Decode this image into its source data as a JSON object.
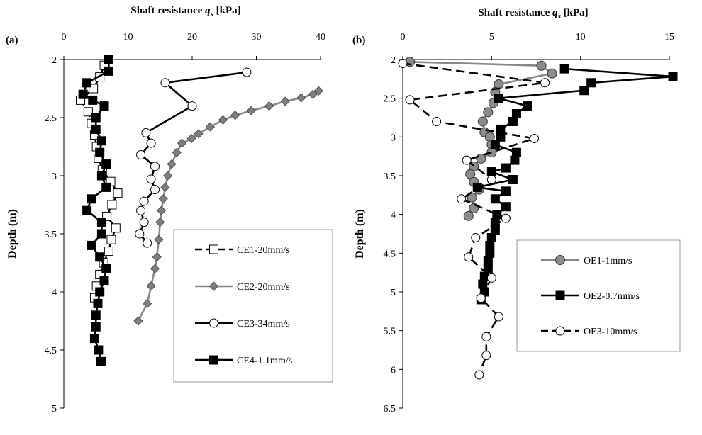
{
  "chart_data": [
    {
      "panel_label": "(a)",
      "type": "line",
      "title_prefix": "Shaft resistance ",
      "title_sym": "q",
      "title_sub": "s",
      "title_suffix": " [kPa]",
      "ylabel": "Depth (m)",
      "x_axis_position": "top",
      "y_axis_inverted": true,
      "xlim": [
        0,
        40
      ],
      "ylim": [
        2,
        5
      ],
      "xticks": [
        "0",
        "10",
        "20",
        "30",
        "40"
      ],
      "yticks": [
        "2",
        "2.5",
        "3",
        "3.5",
        "4",
        "4.5",
        "5"
      ],
      "legend_position": "bottom-right",
      "legend": [
        "CE1-20mm/s",
        "CE2-20mm/s",
        "CE3-34mm/s",
        "CE4-1.1mm/s"
      ],
      "series": [
        {
          "name": "CE1-20mm/s",
          "marker": "square-open",
          "line": "dashed-black",
          "points": [
            [
              6.3,
              2.05
            ],
            [
              5.6,
              2.15
            ],
            [
              4.6,
              2.25
            ],
            [
              2.6,
              2.35
            ],
            [
              3.8,
              2.45
            ],
            [
              4.3,
              2.55
            ],
            [
              4.8,
              2.65
            ],
            [
              5.1,
              2.75
            ],
            [
              5.4,
              2.85
            ],
            [
              6.0,
              2.95
            ],
            [
              7.3,
              3.05
            ],
            [
              8.4,
              3.15
            ],
            [
              7.5,
              3.25
            ],
            [
              6.7,
              3.35
            ],
            [
              8.1,
              3.45
            ],
            [
              7.4,
              3.55
            ],
            [
              7.0,
              3.65
            ],
            [
              6.2,
              3.75
            ],
            [
              5.6,
              3.85
            ],
            [
              5.1,
              3.95
            ],
            [
              4.8,
              4.05
            ]
          ]
        },
        {
          "name": "CE2-20mm/s",
          "marker": "diamond-gray",
          "line": "solid-gray",
          "points": [
            [
              39.7,
              2.27
            ],
            [
              38.8,
              2.3
            ],
            [
              37.0,
              2.33
            ],
            [
              34.5,
              2.36
            ],
            [
              32.0,
              2.4
            ],
            [
              29.2,
              2.44
            ],
            [
              26.7,
              2.48
            ],
            [
              24.8,
              2.52
            ],
            [
              22.8,
              2.58
            ],
            [
              21.0,
              2.64
            ],
            [
              19.9,
              2.68
            ],
            [
              18.4,
              2.72
            ],
            [
              17.6,
              2.8
            ],
            [
              16.8,
              2.9
            ],
            [
              16.2,
              3.0
            ],
            [
              15.8,
              3.1
            ],
            [
              15.5,
              3.2
            ],
            [
              15.2,
              3.3
            ],
            [
              15.0,
              3.4
            ],
            [
              14.8,
              3.55
            ],
            [
              14.5,
              3.7
            ],
            [
              14.2,
              3.8
            ],
            [
              13.6,
              3.95
            ],
            [
              13.0,
              4.1
            ],
            [
              11.6,
              4.25
            ]
          ]
        },
        {
          "name": "CE3-34mm/s",
          "marker": "circle-open",
          "line": "solid-black",
          "points": [
            [
              28.5,
              2.11
            ],
            [
              15.8,
              2.2
            ],
            [
              20.0,
              2.4
            ],
            [
              12.8,
              2.63
            ],
            [
              13.6,
              2.72
            ],
            [
              12.0,
              2.82
            ],
            [
              14.2,
              2.92
            ],
            [
              13.6,
              3.03
            ],
            [
              14.2,
              3.12
            ],
            [
              12.5,
              3.22
            ],
            [
              12.0,
              3.3
            ],
            [
              12.5,
              3.4
            ],
            [
              11.8,
              3.5
            ],
            [
              13.0,
              3.58
            ]
          ]
        },
        {
          "name": "CE4-1.1mm/s",
          "marker": "square-filled",
          "line": "solid-black",
          "points": [
            [
              7.0,
              2.0
            ],
            [
              7.0,
              2.1
            ],
            [
              3.6,
              2.2
            ],
            [
              3.0,
              2.3
            ],
            [
              4.5,
              2.35
            ],
            [
              6.3,
              2.4
            ],
            [
              5.0,
              2.5
            ],
            [
              5.0,
              2.6
            ],
            [
              5.9,
              2.7
            ],
            [
              5.6,
              2.8
            ],
            [
              6.6,
              2.9
            ],
            [
              5.9,
              3.0
            ],
            [
              6.6,
              3.1
            ],
            [
              4.3,
              3.2
            ],
            [
              3.6,
              3.3
            ],
            [
              5.9,
              3.4
            ],
            [
              5.9,
              3.5
            ],
            [
              4.3,
              3.6
            ],
            [
              5.6,
              3.7
            ],
            [
              6.6,
              3.8
            ],
            [
              6.3,
              3.9
            ],
            [
              5.6,
              4.0
            ],
            [
              5.3,
              4.1
            ],
            [
              5.0,
              4.2
            ],
            [
              5.0,
              4.3
            ],
            [
              4.8,
              4.4
            ],
            [
              5.4,
              4.5
            ],
            [
              5.8,
              4.6
            ]
          ]
        }
      ]
    },
    {
      "panel_label": "(b)",
      "type": "line",
      "title_prefix": "Shaft resistance ",
      "title_sym": "q",
      "title_sub": "s",
      "title_suffix": " [kPa]",
      "ylabel": "Depth (m)",
      "x_axis_position": "top",
      "y_axis_inverted": true,
      "xlim": [
        0,
        15
      ],
      "ylim": [
        2,
        6.5
      ],
      "xticks": [
        "0",
        "5",
        "10",
        "15"
      ],
      "yticks": [
        "2",
        "2.5",
        "3",
        "3.5",
        "4",
        "4.5",
        "5",
        "5.5",
        "6",
        "6.5"
      ],
      "legend_position": "bottom-right",
      "legend": [
        "OE1-1mm/s",
        "OE2-0.7mm/s",
        "OE3-10mm/s"
      ],
      "series": [
        {
          "name": "OE1-1mm/s",
          "marker": "circle-gray",
          "line": "solid-gray",
          "points": [
            [
              0.4,
              2.03
            ],
            [
              7.8,
              2.08
            ],
            [
              8.4,
              2.18
            ],
            [
              5.4,
              2.32
            ],
            [
              5.2,
              2.42
            ],
            [
              5.1,
              2.56
            ],
            [
              4.8,
              2.68
            ],
            [
              4.5,
              2.8
            ],
            [
              4.6,
              2.94
            ],
            [
              4.9,
              3.0
            ],
            [
              5.0,
              3.1
            ],
            [
              5.0,
              3.2
            ],
            [
              4.4,
              3.28
            ],
            [
              4.0,
              3.38
            ],
            [
              3.8,
              3.48
            ],
            [
              4.0,
              3.58
            ],
            [
              4.3,
              3.68
            ],
            [
              3.9,
              3.78
            ],
            [
              4.0,
              3.92
            ],
            [
              3.7,
              4.02
            ]
          ]
        },
        {
          "name": "OE2-0.7mm/s",
          "marker": "square-filled",
          "line": "solid-black",
          "points": [
            [
              9.1,
              2.12
            ],
            [
              15.2,
              2.22
            ],
            [
              10.6,
              2.3
            ],
            [
              10.2,
              2.4
            ],
            [
              5.4,
              2.5
            ],
            [
              7.0,
              2.6
            ],
            [
              6.4,
              2.7
            ],
            [
              6.2,
              2.8
            ],
            [
              5.5,
              2.9
            ],
            [
              5.5,
              3.0
            ],
            [
              5.2,
              3.1
            ],
            [
              6.4,
              3.2
            ],
            [
              6.3,
              3.3
            ],
            [
              5.8,
              3.4
            ],
            [
              5.0,
              3.45
            ],
            [
              6.2,
              3.55
            ],
            [
              4.2,
              3.65
            ],
            [
              5.8,
              3.7
            ],
            [
              5.2,
              3.8
            ],
            [
              5.8,
              3.9
            ],
            [
              5.3,
              4.0
            ],
            [
              5.2,
              4.1
            ],
            [
              5.2,
              4.2
            ],
            [
              5.0,
              4.3
            ],
            [
              4.9,
              4.4
            ],
            [
              4.9,
              4.5
            ],
            [
              4.8,
              4.6
            ],
            [
              4.8,
              4.7
            ],
            [
              4.6,
              4.8
            ],
            [
              4.5,
              4.9
            ],
            [
              4.6,
              5.0
            ],
            [
              4.4,
              5.1
            ]
          ]
        },
        {
          "name": "OE3-10mm/s",
          "marker": "circle-open",
          "line": "dashed-black",
          "points": [
            [
              0.0,
              2.05
            ],
            [
              8.0,
              2.3
            ],
            [
              0.4,
              2.52
            ],
            [
              1.9,
              2.8
            ],
            [
              7.4,
              3.02
            ],
            [
              3.6,
              3.3
            ],
            [
              5.0,
              3.55
            ],
            [
              3.3,
              3.8
            ],
            [
              5.8,
              4.05
            ],
            [
              4.1,
              4.3
            ],
            [
              3.7,
              4.55
            ],
            [
              5.0,
              4.82
            ],
            [
              4.4,
              5.08
            ],
            [
              5.4,
              5.32
            ],
            [
              4.7,
              5.58
            ],
            [
              4.7,
              5.82
            ],
            [
              4.3,
              6.07
            ]
          ]
        }
      ]
    }
  ]
}
